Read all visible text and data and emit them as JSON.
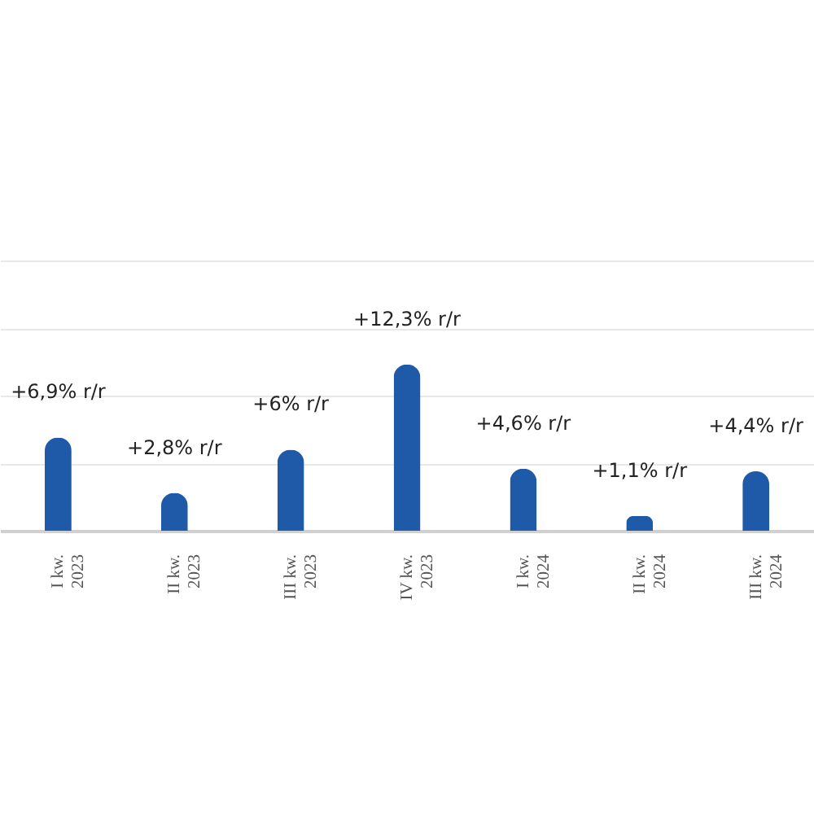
{
  "chart_data": {
    "type": "bar",
    "categories": [
      "I kw.\n2023",
      "II kw.\n2023",
      "III kw.\n2023",
      "IV kw.\n2023",
      "I kw.\n2024",
      "II kw.\n2024",
      "III kw.\n2024"
    ],
    "values": [
      6.9,
      2.8,
      6,
      12.3,
      4.6,
      1.1,
      4.4
    ],
    "value_labels": [
      "+6,9% r/r",
      "+2,8% r/r",
      "+6% r/r",
      "+12,3% r/r",
      "+4,6% r/r",
      "+1,1% r/r",
      "+4,4% r/r"
    ],
    "color": "#1f5aa8",
    "ylim": [
      0,
      20
    ],
    "yticks": [
      {
        "value": 0,
        "label": null
      },
      {
        "value": 5,
        "label": null
      },
      {
        "value": 10,
        "label": null
      },
      {
        "value": 15,
        "label": null
      },
      {
        "value": 20,
        "label": null
      }
    ],
    "grid": "y",
    "tick_labels": "x"
  }
}
